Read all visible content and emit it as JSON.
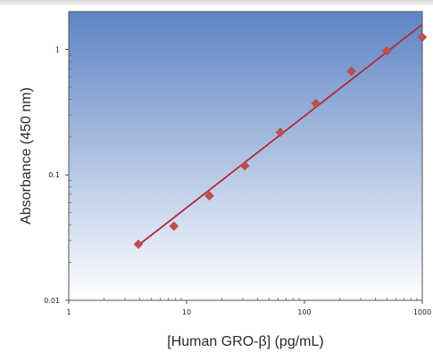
{
  "chart_data": {
    "type": "scatter",
    "xlabel": "[Human GRO-β] (pg/mL)",
    "ylabel": "Absorbance (450 nm)",
    "x_scale": "log",
    "y_scale": "log",
    "xlim": [
      1,
      1000
    ],
    "ylim": [
      0.01,
      2
    ],
    "x_ticks": [
      1,
      10,
      100,
      1000
    ],
    "x_tick_labels": [
      "1",
      "10",
      "100",
      "1000"
    ],
    "y_ticks": [
      0.01,
      0.1,
      1
    ],
    "y_tick_labels": [
      "0.01",
      "0.1",
      "1"
    ],
    "grid": false,
    "series": [
      {
        "type": "scatter",
        "marker": "diamond",
        "x": [
          3.9,
          7.8,
          15.6,
          31.2,
          62.5,
          125,
          250,
          500,
          1000
        ],
        "y": [
          0.028,
          0.039,
          0.068,
          0.118,
          0.218,
          0.37,
          0.67,
          0.97,
          1.25
        ]
      },
      {
        "type": "line",
        "x": [
          3.9,
          1000
        ],
        "y": [
          0.0275,
          1.58
        ]
      }
    ],
    "colors": {
      "marker": "#c0504d",
      "line": "#b02a3a",
      "plot_bg_top": "#5d84c4",
      "plot_bg_bottom": "#ffffff"
    }
  }
}
